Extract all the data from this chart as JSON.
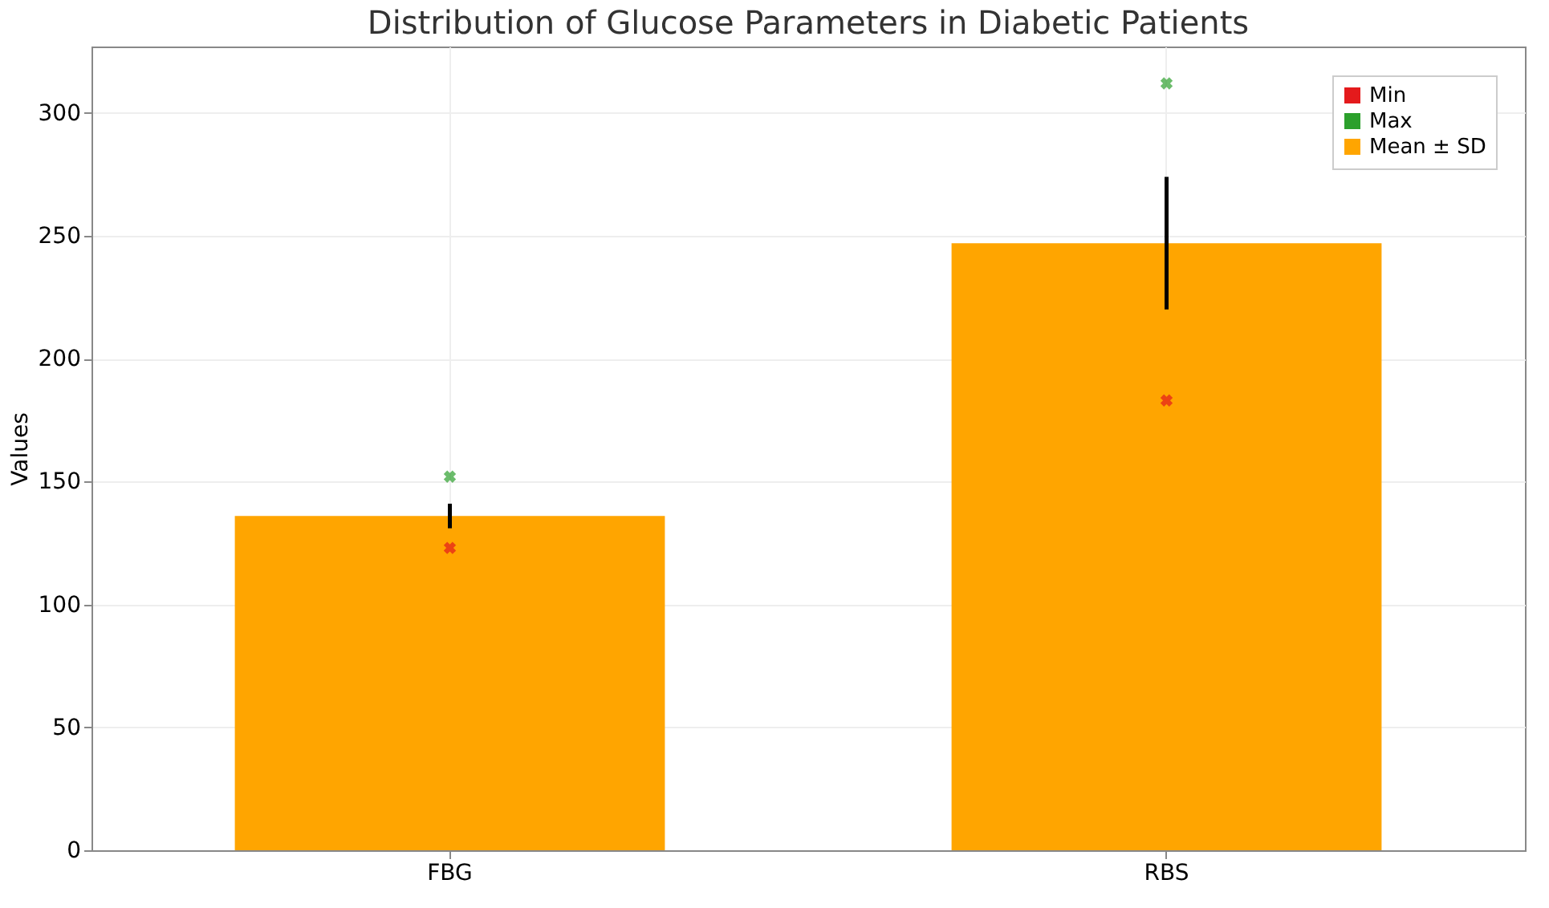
{
  "chart_data": {
    "type": "bar",
    "title": "Distribution of Glucose Parameters in Diabetic Patients",
    "ylabel": "Values",
    "categories": [
      "FBG",
      "RBS"
    ],
    "series": [
      {
        "name": "Min",
        "type": "scatter",
        "marker": "cross",
        "color": "#e41a1c",
        "x": [
          "FBG",
          "RBS"
        ],
        "values": [
          123,
          183
        ]
      },
      {
        "name": "Max",
        "type": "scatter",
        "marker": "cross",
        "color": "#2ca02c",
        "x": [
          "FBG",
          "RBS"
        ],
        "values": [
          152,
          312
        ]
      },
      {
        "name": "Mean ± SD",
        "color": "#ffa500",
        "values": [
          136,
          247
        ],
        "errors": [
          5,
          27
        ]
      }
    ],
    "ylim": [
      0,
      327
    ],
    "yticks": [
      0,
      50,
      100,
      150,
      200,
      250,
      300
    ],
    "grid": true,
    "legend": "top right"
  }
}
